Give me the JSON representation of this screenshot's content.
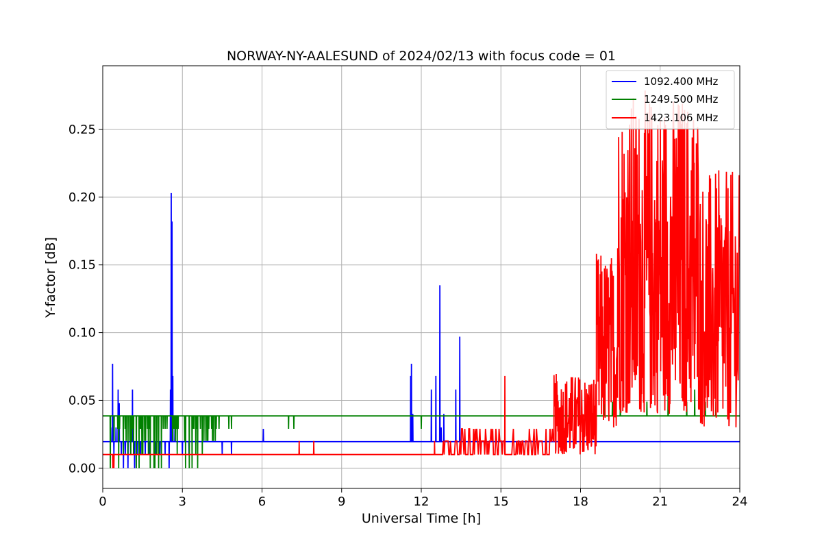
{
  "chart_data": {
    "type": "line",
    "title": "NORWAY-NY-AALESUND of 2024/02/13 with focus code = 01",
    "xlabel": "Universal Time [h]",
    "ylabel": "Y-factor [dB]",
    "xlim": [
      0,
      24
    ],
    "ylim": [
      -0.015,
      0.297
    ],
    "x_ticks": [
      0,
      3,
      6,
      9,
      12,
      15,
      18,
      21,
      24
    ],
    "x_tick_labels": [
      "0",
      "3",
      "6",
      "9",
      "12",
      "15",
      "18",
      "21",
      "24"
    ],
    "y_ticks": [
      0.0,
      0.05,
      0.1,
      0.15,
      0.2,
      0.25
    ],
    "y_tick_labels": [
      "0.00",
      "0.05",
      "0.10",
      "0.15",
      "0.20",
      "0.25"
    ],
    "grid": true,
    "legend_position": "top-right",
    "series": [
      {
        "name": "1092.400 MHz",
        "color": "#0000ff",
        "baseline": 0.0195,
        "spikes": [
          [
            0.3,
            0.03
          ],
          [
            0.37,
            0.077
          ],
          [
            0.42,
            0.01
          ],
          [
            0.5,
            0.03
          ],
          [
            0.58,
            0.058
          ],
          [
            0.62,
            0.048
          ],
          [
            0.7,
            0.01
          ],
          [
            0.78,
            0.0
          ],
          [
            0.85,
            0.01
          ],
          [
            0.95,
            0.0
          ],
          [
            1.05,
            0.01
          ],
          [
            1.12,
            0.058
          ],
          [
            1.2,
            0.0
          ],
          [
            1.3,
            0.01
          ],
          [
            1.42,
            0.01
          ],
          [
            1.6,
            0.01
          ],
          [
            1.75,
            0.01
          ],
          [
            2.0,
            0.01
          ],
          [
            2.15,
            0.01
          ],
          [
            2.35,
            0.01
          ],
          [
            2.5,
            0.0
          ],
          [
            2.55,
            0.058
          ],
          [
            2.58,
            0.203
          ],
          [
            2.61,
            0.182
          ],
          [
            2.64,
            0.068
          ],
          [
            2.72,
            0.03
          ],
          [
            3.0,
            0.01
          ],
          [
            3.25,
            0.01
          ],
          [
            4.5,
            0.01
          ],
          [
            4.85,
            0.01
          ],
          [
            6.05,
            0.029
          ],
          [
            11.6,
            0.068
          ],
          [
            11.63,
            0.077
          ],
          [
            11.68,
            0.04
          ],
          [
            12.38,
            0.058
          ],
          [
            12.55,
            0.068
          ],
          [
            12.7,
            0.135
          ],
          [
            12.75,
            0.03
          ],
          [
            12.85,
            0.04
          ],
          [
            13.3,
            0.058
          ],
          [
            13.45,
            0.097
          ]
        ]
      },
      {
        "name": "1249.500 MHz",
        "color": "#008000",
        "baseline": 0.0385,
        "noise_range": [
          0.25,
          4.4
        ],
        "spikes": [
          [
            4.75,
            0.029
          ],
          [
            4.85,
            0.029
          ],
          [
            7.0,
            0.029
          ],
          [
            7.2,
            0.029
          ],
          [
            12.0,
            0.029
          ],
          [
            18.9,
            0.049
          ],
          [
            19.2,
            0.049
          ],
          [
            19.5,
            0.049
          ],
          [
            20.5,
            0.049
          ],
          [
            21.3,
            0.058
          ],
          [
            22.0,
            0.049
          ],
          [
            22.3,
            0.058
          ],
          [
            22.7,
            0.049
          ],
          [
            23.1,
            0.049
          ]
        ]
      },
      {
        "name": "1423.106 MHz",
        "color": "#ff0000",
        "baseline": 0.01,
        "spikes": [
          [
            0.38,
            0.0
          ],
          [
            0.42,
            0.0
          ],
          [
            7.4,
            0.02
          ],
          [
            7.95,
            0.02
          ],
          [
            12.5,
            0.02
          ],
          [
            15.15,
            0.068
          ]
        ],
        "noise_segments": [
          {
            "range": [
              12.8,
              17.0
            ],
            "low": 0.01,
            "high": 0.029
          },
          {
            "range": [
              17.0,
              18.6
            ],
            "low": 0.01,
            "high": 0.07
          },
          {
            "range": [
              18.6,
              19.4
            ],
            "low": 0.03,
            "high": 0.16
          },
          {
            "range": [
              19.4,
              22.5
            ],
            "low": 0.04,
            "high": 0.28
          },
          {
            "range": [
              22.5,
              24.0
            ],
            "low": 0.03,
            "high": 0.22
          }
        ]
      }
    ]
  }
}
